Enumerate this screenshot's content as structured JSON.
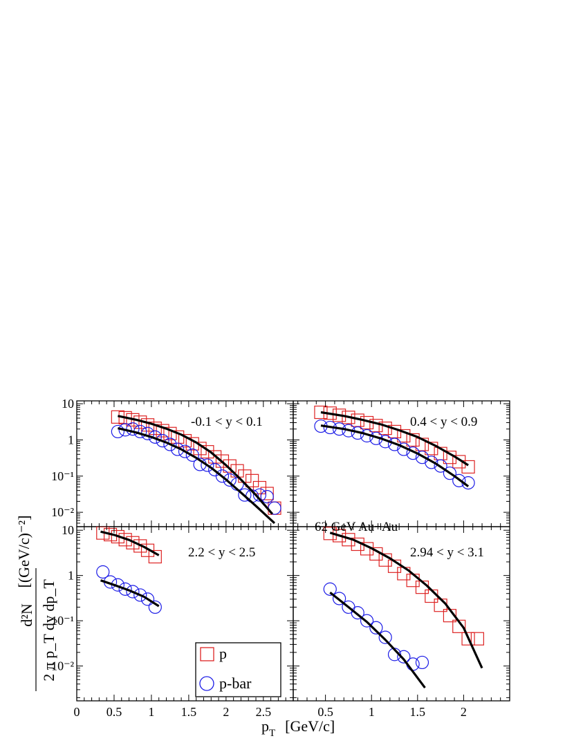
{
  "chart_data": {
    "type": "scatter",
    "title": "",
    "scale": "log-y",
    "colors": {
      "p": "#dd2222",
      "pbar": "#1a1ae6",
      "fit": "#000000"
    },
    "xlabel": {
      "main": "p",
      "sub": "T",
      "unit": "[GeV/c]"
    },
    "ylabel": {
      "numerator": "d²N",
      "denominator": "2 π p_T dy dp_T",
      "unit": "[(GeV/c)⁻²]"
    },
    "legend": [
      {
        "key": "p",
        "label": "p",
        "marker": "square"
      },
      {
        "key": "pbar",
        "label": "p-bar",
        "marker": "circle"
      }
    ],
    "note": "62 GeV Au+Au",
    "y_ticks": [
      {
        "v": 0.01,
        "label": "10⁻²"
      },
      {
        "v": 0.1,
        "label": "10⁻¹"
      },
      {
        "v": 1,
        "label": "1"
      },
      {
        "v": 10,
        "label": "10"
      }
    ],
    "panels": [
      {
        "id": "tl",
        "label": "-0.1 < y < 0.1",
        "xlim": [
          0,
          2.9
        ],
        "ylim": [
          0.004,
          12
        ],
        "x_ticks": [],
        "p": [
          [
            0.55,
            4.3
          ],
          [
            0.65,
            4.1
          ],
          [
            0.75,
            3.6
          ],
          [
            0.85,
            3.1
          ],
          [
            0.95,
            2.6
          ],
          [
            1.05,
            2.1
          ],
          [
            1.15,
            1.8
          ],
          [
            1.25,
            1.5
          ],
          [
            1.35,
            1.2
          ],
          [
            1.45,
            0.95
          ],
          [
            1.55,
            0.78
          ],
          [
            1.65,
            0.58
          ],
          [
            1.75,
            0.47
          ],
          [
            1.85,
            0.34
          ],
          [
            1.95,
            0.26
          ],
          [
            2.05,
            0.19
          ],
          [
            2.15,
            0.14
          ],
          [
            2.25,
            0.1
          ],
          [
            2.35,
            0.075
          ],
          [
            2.45,
            0.048
          ],
          [
            2.55,
            0.033
          ],
          [
            2.65,
            0.013
          ]
        ],
        "pbar": [
          [
            0.55,
            1.7
          ],
          [
            0.65,
            1.9
          ],
          [
            0.75,
            2.0
          ],
          [
            0.85,
            1.7
          ],
          [
            0.95,
            1.5
          ],
          [
            1.05,
            1.2
          ],
          [
            1.15,
            0.95
          ],
          [
            1.25,
            0.75
          ],
          [
            1.35,
            0.55
          ],
          [
            1.45,
            0.48
          ],
          [
            1.55,
            0.38
          ],
          [
            1.65,
            0.21
          ],
          [
            1.75,
            0.2
          ],
          [
            1.85,
            0.15
          ],
          [
            1.95,
            0.1
          ],
          [
            2.05,
            0.078
          ],
          [
            2.15,
            0.06
          ],
          [
            2.25,
            0.03
          ],
          [
            2.35,
            0.028
          ],
          [
            2.45,
            0.03
          ],
          [
            2.55,
            0.027
          ],
          [
            2.65,
            0.013
          ]
        ],
        "fit_p": [
          [
            0.55,
            4.6
          ],
          [
            0.8,
            3.6
          ],
          [
            1.0,
            2.8
          ],
          [
            1.2,
            2.05
          ],
          [
            1.4,
            1.4
          ],
          [
            1.6,
            0.85
          ],
          [
            1.8,
            0.45
          ],
          [
            2.0,
            0.2
          ],
          [
            2.2,
            0.08
          ],
          [
            2.4,
            0.03
          ],
          [
            2.62,
            0.009
          ]
        ],
        "fit_pbar": [
          [
            0.55,
            2.1
          ],
          [
            0.8,
            1.6
          ],
          [
            1.0,
            1.2
          ],
          [
            1.2,
            0.85
          ],
          [
            1.4,
            0.55
          ],
          [
            1.6,
            0.32
          ],
          [
            1.8,
            0.17
          ],
          [
            2.0,
            0.08
          ],
          [
            2.2,
            0.035
          ],
          [
            2.4,
            0.015
          ],
          [
            2.65,
            0.005
          ]
        ]
      },
      {
        "id": "tr",
        "label": "0.4 < y < 0.9",
        "xlim": [
          0.15,
          2.5
        ],
        "ylim": [
          0.004,
          12
        ],
        "x_ticks": [],
        "p": [
          [
            0.45,
            5.8
          ],
          [
            0.55,
            5.5
          ],
          [
            0.65,
            4.8
          ],
          [
            0.75,
            4.2
          ],
          [
            0.85,
            3.5
          ],
          [
            0.95,
            3.0
          ],
          [
            1.05,
            2.5
          ],
          [
            1.15,
            2.1
          ],
          [
            1.25,
            1.7
          ],
          [
            1.35,
            1.3
          ],
          [
            1.45,
            1.0
          ],
          [
            1.55,
            0.75
          ],
          [
            1.65,
            0.58
          ],
          [
            1.75,
            0.42
          ],
          [
            1.85,
            0.33
          ],
          [
            1.95,
            0.25
          ],
          [
            2.05,
            0.18
          ]
        ],
        "pbar": [
          [
            0.45,
            2.4
          ],
          [
            0.55,
            2.2
          ],
          [
            0.65,
            2.0
          ],
          [
            0.75,
            1.8
          ],
          [
            0.85,
            1.55
          ],
          [
            0.95,
            1.3
          ],
          [
            1.05,
            1.1
          ],
          [
            1.15,
            0.9
          ],
          [
            1.25,
            0.75
          ],
          [
            1.35,
            0.55
          ],
          [
            1.45,
            0.43
          ],
          [
            1.55,
            0.33
          ],
          [
            1.65,
            0.24
          ],
          [
            1.75,
            0.19
          ],
          [
            1.85,
            0.12
          ],
          [
            1.95,
            0.075
          ],
          [
            2.05,
            0.065
          ]
        ],
        "fit_p": [
          [
            0.45,
            5.8
          ],
          [
            0.7,
            4.6
          ],
          [
            0.9,
            3.6
          ],
          [
            1.1,
            2.7
          ],
          [
            1.3,
            1.85
          ],
          [
            1.5,
            1.2
          ],
          [
            1.7,
            0.68
          ],
          [
            1.9,
            0.35
          ],
          [
            2.05,
            0.2
          ]
        ],
        "fit_pbar": [
          [
            0.45,
            2.5
          ],
          [
            0.7,
            2.0
          ],
          [
            0.9,
            1.55
          ],
          [
            1.1,
            1.1
          ],
          [
            1.3,
            0.72
          ],
          [
            1.5,
            0.42
          ],
          [
            1.7,
            0.22
          ],
          [
            1.9,
            0.1
          ],
          [
            2.05,
            0.052
          ]
        ]
      },
      {
        "id": "bl",
        "label": "2.2 < y < 2.5",
        "xlim": [
          0,
          2.9
        ],
        "ylim": [
          0.0017,
          12
        ],
        "x_ticks": [
          {
            "v": 0,
            "label": "0"
          },
          {
            "v": 0.5,
            "label": "0.5"
          },
          {
            "v": 1,
            "label": "1"
          },
          {
            "v": 1.5,
            "label": "1.5"
          },
          {
            "v": 2,
            "label": "2"
          },
          {
            "v": 2.5,
            "label": "2.5"
          }
        ],
        "p": [
          [
            0.35,
            8.7
          ],
          [
            0.45,
            8.0
          ],
          [
            0.55,
            7.2
          ],
          [
            0.65,
            6.2
          ],
          [
            0.75,
            5.3
          ],
          [
            0.85,
            4.5
          ],
          [
            0.95,
            3.6
          ],
          [
            1.05,
            2.6
          ]
        ],
        "pbar": [
          [
            0.35,
            1.2
          ],
          [
            0.45,
            0.72
          ],
          [
            0.55,
            0.62
          ],
          [
            0.65,
            0.5
          ],
          [
            0.75,
            0.44
          ],
          [
            0.85,
            0.37
          ],
          [
            0.95,
            0.3
          ],
          [
            1.05,
            0.2
          ]
        ],
        "fit_p": [
          [
            0.32,
            9.3
          ],
          [
            0.5,
            7.9
          ],
          [
            0.7,
            6.1
          ],
          [
            0.9,
            4.3
          ],
          [
            1.1,
            2.8
          ]
        ],
        "fit_pbar": [
          [
            0.32,
            0.78
          ],
          [
            0.5,
            0.62
          ],
          [
            0.7,
            0.47
          ],
          [
            0.9,
            0.34
          ],
          [
            1.1,
            0.21
          ]
        ]
      },
      {
        "id": "br",
        "label": "2.94 < y < 3.1",
        "xlim": [
          0.15,
          2.5
        ],
        "ylim": [
          0.0017,
          12
        ],
        "x_ticks": [
          {
            "v": 0.5,
            "label": "0.5"
          },
          {
            "v": 1,
            "label": "1"
          },
          {
            "v": 1.5,
            "label": "1.5"
          },
          {
            "v": 2,
            "label": "2"
          }
        ],
        "p": [
          [
            0.55,
            8.5
          ],
          [
            0.65,
            7.6
          ],
          [
            0.75,
            6.2
          ],
          [
            0.85,
            4.9
          ],
          [
            0.95,
            3.9
          ],
          [
            1.05,
            3.0
          ],
          [
            1.15,
            2.2
          ],
          [
            1.25,
            1.6
          ],
          [
            1.35,
            1.1
          ],
          [
            1.45,
            0.78
          ],
          [
            1.55,
            0.55
          ],
          [
            1.65,
            0.35
          ],
          [
            1.75,
            0.22
          ],
          [
            1.85,
            0.13
          ],
          [
            1.95,
            0.075
          ],
          [
            2.05,
            0.04
          ],
          [
            2.15,
            0.04
          ]
        ],
        "pbar": [
          [
            0.55,
            0.5
          ],
          [
            0.65,
            0.31
          ],
          [
            0.75,
            0.2
          ],
          [
            0.85,
            0.15
          ],
          [
            0.95,
            0.1
          ],
          [
            1.05,
            0.07
          ],
          [
            1.15,
            0.043
          ],
          [
            1.25,
            0.018
          ],
          [
            1.35,
            0.016
          ],
          [
            1.45,
            0.011
          ],
          [
            1.55,
            0.012
          ]
        ],
        "fit_p": [
          [
            0.55,
            8.8
          ],
          [
            0.8,
            6.2
          ],
          [
            1.0,
            4.0
          ],
          [
            1.2,
            2.4
          ],
          [
            1.4,
            1.3
          ],
          [
            1.6,
            0.6
          ],
          [
            1.8,
            0.24
          ],
          [
            2.0,
            0.07
          ],
          [
            2.2,
            0.009
          ]
        ],
        "fit_pbar": [
          [
            0.55,
            0.42
          ],
          [
            0.75,
            0.2
          ],
          [
            0.95,
            0.094
          ],
          [
            1.15,
            0.038
          ],
          [
            1.35,
            0.014
          ],
          [
            1.58,
            0.0033
          ]
        ]
      }
    ]
  }
}
